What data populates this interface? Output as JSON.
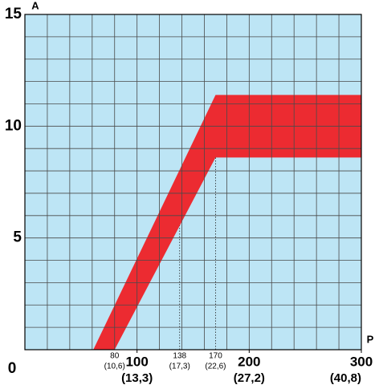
{
  "chart_data": {
    "type": "band",
    "x_label": "P",
    "y_label": "A",
    "xlim": [
      0,
      300
    ],
    "ylim": [
      0,
      15
    ],
    "xticks": [
      100,
      200,
      300
    ],
    "xtick_sublabels": [
      "(13,3)",
      "(27,2)",
      "(40,8)"
    ],
    "xticks_minor": [
      80,
      138,
      170
    ],
    "xtick_minor_sublabels": [
      "(10,6)",
      "(17,3)",
      "(22,6)"
    ],
    "yticks": [
      0,
      5,
      10,
      15
    ],
    "xgrid": [
      0,
      20,
      40,
      60,
      80,
      100,
      120,
      140,
      160,
      180,
      200,
      220,
      240,
      260,
      280,
      300
    ],
    "ygrid": [
      0,
      1,
      2,
      3,
      4,
      5,
      6,
      7,
      8,
      9,
      10,
      11,
      12,
      13,
      14,
      15
    ],
    "background": "#bde5f5",
    "grid_color": "#4a4a4a",
    "color": "#ec2b31",
    "upper": {
      "x": [
        61,
        170,
        300
      ],
      "values": [
        0,
        11.4,
        11.4
      ]
    },
    "lower": {
      "x": [
        80,
        170,
        300
      ],
      "values": [
        0,
        8.6,
        8.6
      ]
    }
  }
}
